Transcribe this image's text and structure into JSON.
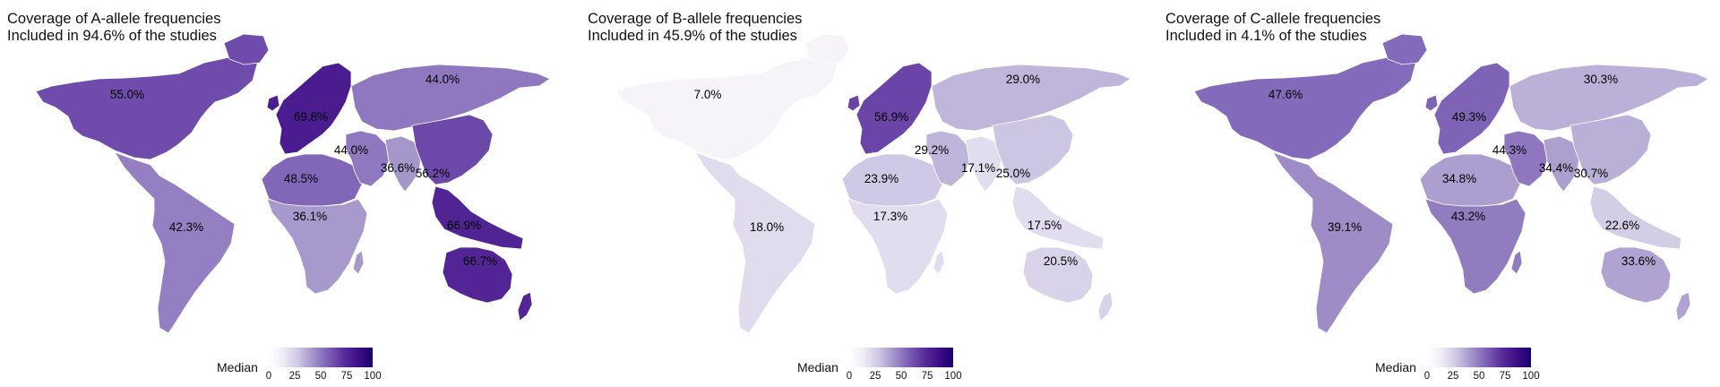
{
  "chart_data": [
    {
      "type": "choropleth",
      "title": "Coverage of A-allele frequencies",
      "subtitle": "Included in 94.6% of the studies",
      "legend_title": "Median",
      "scale_range": [
        0,
        100
      ],
      "ticks": [
        "0",
        "25",
        "50",
        "75",
        "100"
      ],
      "regions": [
        {
          "region": "Northern America",
          "value": 55.0,
          "label": "55.0%"
        },
        {
          "region": "Latin America",
          "value": 42.3,
          "label": "42.3%"
        },
        {
          "region": "Europe",
          "value": 69.8,
          "label": "69.8%"
        },
        {
          "region": "Northern Africa",
          "value": 48.5,
          "label": "48.5%"
        },
        {
          "region": "Sub-Saharan Africa",
          "value": 36.1,
          "label": "36.1%"
        },
        {
          "region": "Middle East",
          "value": 44.0,
          "label": "44.0%"
        },
        {
          "region": "Northern Asia",
          "value": 44.0,
          "label": "44.0%"
        },
        {
          "region": "South Asia",
          "value": 36.6,
          "label": "36.6%"
        },
        {
          "region": "East Asia",
          "value": 56.2,
          "label": "56.2%"
        },
        {
          "region": "South-East Asia",
          "value": 66.9,
          "label": "66.9%"
        },
        {
          "region": "Oceania",
          "value": 66.7,
          "label": "66.7%"
        }
      ]
    },
    {
      "type": "choropleth",
      "title": "Coverage of B-allele frequencies",
      "subtitle": "Included in 45.9% of the studies",
      "legend_title": "Median",
      "scale_range": [
        0,
        100
      ],
      "ticks": [
        "0",
        "25",
        "50",
        "75",
        "100"
      ],
      "regions": [
        {
          "region": "Northern America",
          "value": 7.0,
          "label": "7.0%"
        },
        {
          "region": "Latin America",
          "value": 18.0,
          "label": "18.0%"
        },
        {
          "region": "Europe",
          "value": 56.9,
          "label": "56.9%"
        },
        {
          "region": "Northern Africa",
          "value": 23.9,
          "label": "23.9%"
        },
        {
          "region": "Sub-Saharan Africa",
          "value": 17.3,
          "label": "17.3%"
        },
        {
          "region": "Middle East",
          "value": 29.2,
          "label": "29.2%"
        },
        {
          "region": "Northern Asia",
          "value": 29.0,
          "label": "29.0%"
        },
        {
          "region": "South Asia",
          "value": 17.1,
          "label": "17.1%"
        },
        {
          "region": "East Asia",
          "value": 25.0,
          "label": "25.0%"
        },
        {
          "region": "South-East Asia",
          "value": 17.5,
          "label": "17.5%"
        },
        {
          "region": "Oceania",
          "value": 20.5,
          "label": "20.5%"
        }
      ]
    },
    {
      "type": "choropleth",
      "title": "Coverage of C-allele frequencies",
      "subtitle": "Included in 4.1% of the studies",
      "legend_title": "Median",
      "scale_range": [
        0,
        100
      ],
      "ticks": [
        "0",
        "25",
        "50",
        "75",
        "100"
      ],
      "regions": [
        {
          "region": "Northern America",
          "value": 47.6,
          "label": "47.6%"
        },
        {
          "region": "Latin America",
          "value": 39.1,
          "label": "39.1%"
        },
        {
          "region": "Europe",
          "value": 49.3,
          "label": "49.3%"
        },
        {
          "region": "Northern Africa",
          "value": 34.8,
          "label": "34.8%"
        },
        {
          "region": "Sub-Saharan Africa",
          "value": 43.2,
          "label": "43.2%"
        },
        {
          "region": "Middle East",
          "value": 44.3,
          "label": "44.3%"
        },
        {
          "region": "Northern Asia",
          "value": 30.3,
          "label": "30.3%"
        },
        {
          "region": "South Asia",
          "value": 34.4,
          "label": "34.4%"
        },
        {
          "region": "East Asia",
          "value": 30.7,
          "label": "30.7%"
        },
        {
          "region": "South-East Asia",
          "value": 22.6,
          "label": "22.6%"
        },
        {
          "region": "Oceania",
          "value": 33.6,
          "label": "33.6%"
        }
      ]
    }
  ]
}
